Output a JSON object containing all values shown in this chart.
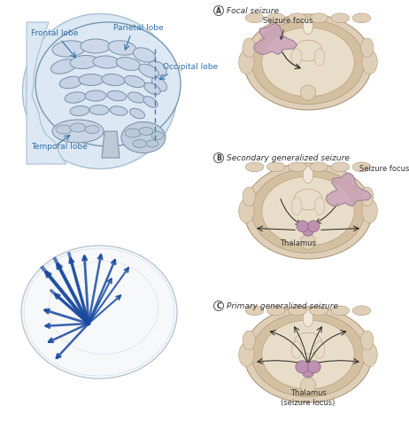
{
  "background_color": "#ffffff",
  "section_labels": [
    " Focal seizure",
    " Secondary generalized seizure",
    " Primary generalized seizure"
  ],
  "section_letter_labels": [
    "A",
    "B",
    "C"
  ],
  "lobe_labels": [
    "Frontal lobe",
    "Parietal lobe",
    "Occipital lobe",
    "Temporal lobe"
  ],
  "lobe_label_color": "#3070a8",
  "seizure_focus_color": "#c8a0b8",
  "thalamus_color_B": "#c090b0",
  "thalamus_color_C": "#c090b0",
  "arrow_color": "#222222",
  "text_color": "#333333",
  "brain_fill": "#dce8f0",
  "brain_gyri": "#c8d8e8",
  "skull_fill": "#e8ddd0",
  "skull_edge": "#c0aa90",
  "coronal_outer": "#e0cfb8",
  "coronal_mid": "#d4bfa0",
  "coronal_inner": "#e8ddc8",
  "coronal_edge": "#b09878",
  "pathway_color": "#1848a0"
}
